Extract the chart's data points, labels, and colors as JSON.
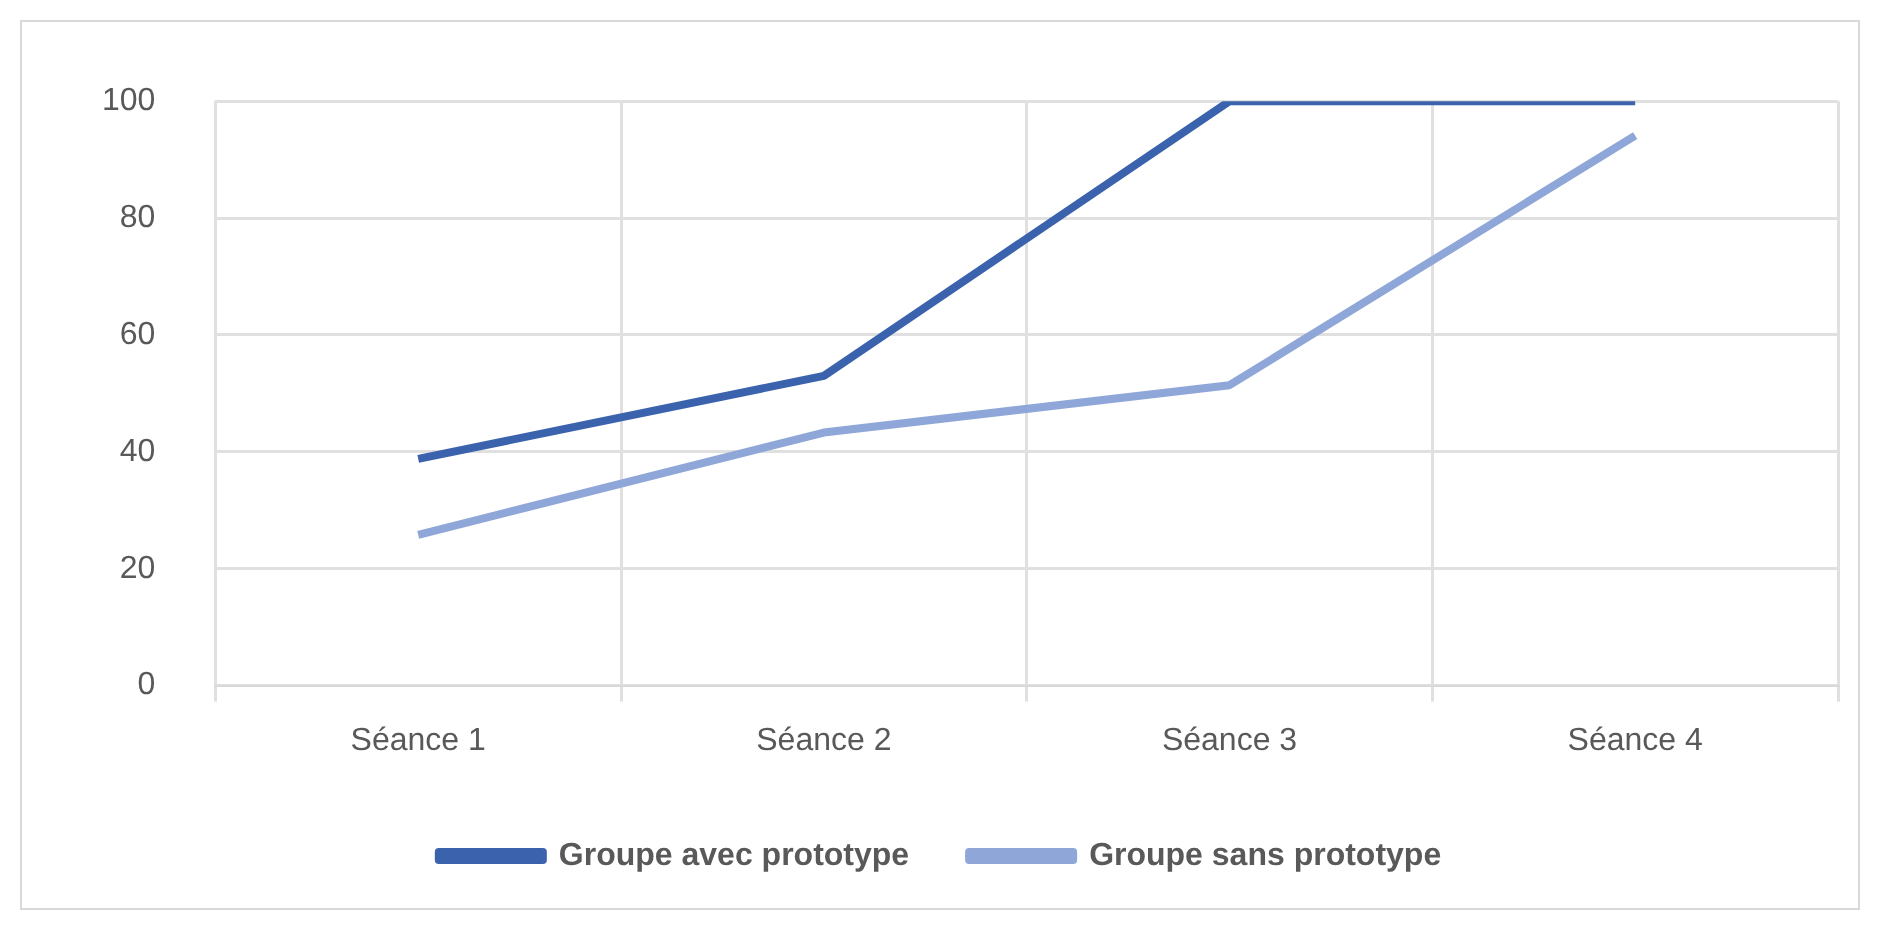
{
  "chart_data": {
    "type": "line",
    "categories": [
      "Séance 1",
      "Séance 2",
      "Séance 3",
      "Séance 4"
    ],
    "series": [
      {
        "name": "Groupe avec prototype",
        "color": "#3a62ad",
        "values": [
          38.8,
          53,
          100,
          100
        ]
      },
      {
        "name": "Groupe sans prototype",
        "color": "#8fa6d8",
        "values": [
          25.8,
          43.3,
          51.4,
          94.1
        ]
      }
    ],
    "ylim": [
      0,
      100
    ],
    "yticks": [
      0,
      20,
      40,
      60,
      80,
      100
    ],
    "grid": true,
    "legend": "bottom",
    "marker": "none",
    "line_style": "solid"
  }
}
